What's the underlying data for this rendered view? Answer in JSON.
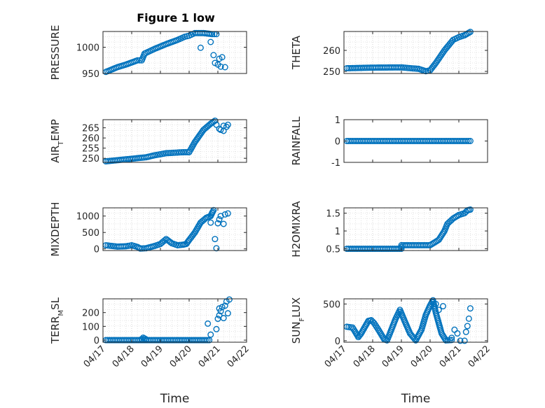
{
  "figure_title": "Figure 1 low",
  "colors": {
    "marker": "#0072bd",
    "axis": "#262626",
    "grid": "#dcdcdc"
  },
  "chart_data": [
    {
      "type": "scatter",
      "ylabel": "PRESSURE",
      "ylim": [
        950,
        1030
      ],
      "yticks": [
        "950",
        "1000"
      ],
      "ytick_values": [
        950,
        1000
      ],
      "xlim": [
        0,
        5
      ],
      "xticks": [],
      "grid": true,
      "segments": [
        [
          0.1,
          953
        ],
        [
          0.5,
          962
        ],
        [
          0.8,
          967
        ],
        [
          1.2,
          975
        ],
        [
          1.35,
          975
        ],
        [
          1.45,
          988
        ],
        [
          1.8,
          997
        ],
        [
          2.2,
          1006
        ],
        [
          2.6,
          1014
        ],
        [
          2.85,
          1020
        ],
        [
          3.0,
          1022
        ],
        [
          3.2,
          1027
        ],
        [
          3.5,
          1027
        ],
        [
          3.8,
          1025
        ],
        [
          3.95,
          1025
        ]
      ],
      "points": [
        [
          3.4,
          999
        ],
        [
          3.75,
          1010
        ],
        [
          3.85,
          985
        ],
        [
          3.9,
          970
        ],
        [
          4.0,
          967
        ],
        [
          4.05,
          978
        ],
        [
          4.1,
          963
        ],
        [
          4.15,
          981
        ],
        [
          4.25,
          962
        ]
      ]
    },
    {
      "type": "scatter",
      "ylabel": "THETA",
      "ylim": [
        249,
        269
      ],
      "yticks": [
        "250",
        "260"
      ],
      "ytick_values": [
        250,
        260
      ],
      "xlim": [
        0,
        5
      ],
      "xticks": [],
      "grid": true,
      "segments": [
        [
          0.1,
          251.5
        ],
        [
          1.0,
          251.8
        ],
        [
          2.0,
          251.9
        ],
        [
          2.6,
          251.2
        ],
        [
          2.85,
          250.1
        ],
        [
          3.0,
          250.5
        ],
        [
          3.2,
          254
        ],
        [
          3.5,
          260
        ],
        [
          3.8,
          265
        ],
        [
          4.0,
          266.3
        ],
        [
          4.2,
          267.2
        ],
        [
          4.4,
          268.8
        ]
      ],
      "points": []
    },
    {
      "type": "scatter",
      "ylabel": "AIR_TEMP",
      "ylim": [
        248,
        269
      ],
      "yticks": [
        "250",
        "255",
        "260",
        "265"
      ],
      "ytick_values": [
        250,
        255,
        260,
        265
      ],
      "xlim": [
        0,
        5
      ],
      "xticks": [],
      "grid": true,
      "segments": [
        [
          0.1,
          248.5
        ],
        [
          0.8,
          249.5
        ],
        [
          1.5,
          250.5
        ],
        [
          1.8,
          251.5
        ],
        [
          2.2,
          252.5
        ],
        [
          2.8,
          253.0
        ],
        [
          3.0,
          253.0
        ],
        [
          3.2,
          258
        ],
        [
          3.5,
          264
        ],
        [
          3.75,
          267
        ],
        [
          3.9,
          268.5
        ]
      ],
      "points": [
        [
          3.95,
          266.5
        ],
        [
          4.05,
          264.5
        ],
        [
          4.1,
          264.0
        ],
        [
          4.2,
          263.5
        ],
        [
          4.2,
          266.0
        ],
        [
          4.3,
          265.5
        ],
        [
          4.35,
          266.5
        ]
      ]
    },
    {
      "type": "scatter",
      "ylabel": "RAINFALL",
      "ylim": [
        -1,
        1
      ],
      "yticks": [
        "-1",
        "0",
        "1"
      ],
      "ytick_values": [
        -1,
        0,
        1
      ],
      "xlim": [
        0,
        5
      ],
      "xticks": [],
      "grid": false,
      "segments": [
        [
          0.1,
          0
        ],
        [
          4.4,
          0
        ]
      ],
      "points": []
    },
    {
      "type": "scatter",
      "ylabel": "MIXDEPTH",
      "ylim": [
        -50,
        1250
      ],
      "yticks": [
        "0",
        "500",
        "1000"
      ],
      "ytick_values": [
        0,
        500,
        1000
      ],
      "xlim": [
        0,
        5
      ],
      "xticks": [],
      "grid": true,
      "segments": [
        [
          0.1,
          110
        ],
        [
          0.3,
          90
        ],
        [
          0.5,
          70
        ],
        [
          0.8,
          80
        ],
        [
          1.0,
          110
        ],
        [
          1.2,
          60
        ],
        [
          1.3,
          10
        ],
        [
          1.5,
          20
        ],
        [
          1.8,
          90
        ],
        [
          2.0,
          150
        ],
        [
          2.2,
          300
        ],
        [
          2.4,
          170
        ],
        [
          2.6,
          110
        ],
        [
          2.8,
          130
        ],
        [
          2.9,
          150
        ],
        [
          3.0,
          270
        ],
        [
          3.2,
          500
        ],
        [
          3.4,
          800
        ],
        [
          3.6,
          950
        ],
        [
          3.75,
          1000
        ],
        [
          3.85,
          1180
        ]
      ],
      "points": [
        [
          3.75,
          800
        ],
        [
          3.8,
          1100
        ],
        [
          3.9,
          300
        ],
        [
          3.95,
          20
        ],
        [
          4.0,
          780
        ],
        [
          4.05,
          900
        ],
        [
          4.1,
          1000
        ],
        [
          4.2,
          760
        ],
        [
          4.25,
          1050
        ],
        [
          4.35,
          1080
        ]
      ]
    },
    {
      "type": "scatter",
      "ylabel": "H2OMIXRA",
      "ylim": [
        0.45,
        1.65
      ],
      "yticks": [
        "0.5",
        "1",
        "1.5"
      ],
      "ytick_values": [
        0.5,
        1.0,
        1.5
      ],
      "xlim": [
        0,
        5
      ],
      "xticks": [],
      "grid": true,
      "segments": [
        [
          0.1,
          0.5
        ],
        [
          2.0,
          0.5
        ],
        [
          2.0,
          0.6
        ],
        [
          3.0,
          0.6
        ],
        [
          3.3,
          0.75
        ],
        [
          3.5,
          1.0
        ],
        [
          3.6,
          1.2
        ],
        [
          3.8,
          1.35
        ],
        [
          4.0,
          1.45
        ],
        [
          4.2,
          1.5
        ],
        [
          4.3,
          1.58
        ],
        [
          4.4,
          1.6
        ]
      ],
      "points": []
    },
    {
      "type": "scatter",
      "ylabel": "TERR_MSL",
      "ylim": [
        -15,
        300
      ],
      "yticks": [
        "0",
        "100",
        "200"
      ],
      "ytick_values": [
        0,
        100,
        200
      ],
      "xlim": [
        0,
        5
      ],
      "xticks": [
        "04/17",
        "04/18",
        "04/19",
        "04/20",
        "04/21",
        "04/22"
      ],
      "xlabel": "Time",
      "grid": true,
      "segments": [
        [
          0.1,
          0
        ],
        [
          3.7,
          0
        ]
      ],
      "points": [
        [
          1.35,
          8
        ],
        [
          1.4,
          18
        ],
        [
          1.45,
          12
        ],
        [
          1.5,
          6
        ],
        [
          3.65,
          120
        ],
        [
          3.75,
          40
        ],
        [
          3.95,
          80
        ],
        [
          4.0,
          155
        ],
        [
          4.05,
          180
        ],
        [
          4.05,
          230
        ],
        [
          4.1,
          210
        ],
        [
          4.15,
          240
        ],
        [
          4.2,
          160
        ],
        [
          4.25,
          250
        ],
        [
          4.3,
          280
        ],
        [
          4.4,
          295
        ],
        [
          4.35,
          195
        ]
      ]
    },
    {
      "type": "scatter",
      "ylabel": "SUN_FLUX",
      "ylim": [
        -20,
        570
      ],
      "yticks": [
        "0",
        "500"
      ],
      "ytick_values": [
        0,
        500
      ],
      "xlim": [
        0,
        5
      ],
      "xticks": [
        "04/17",
        "04/18",
        "04/19",
        "04/20",
        "04/21",
        "04/22"
      ],
      "xlabel": "Time",
      "grid": true,
      "segments": [
        [
          0.1,
          190
        ],
        [
          0.3,
          180
        ],
        [
          0.5,
          50
        ],
        [
          0.6,
          100
        ],
        [
          0.85,
          270
        ],
        [
          0.95,
          280
        ],
        [
          1.05,
          240
        ],
        [
          1.2,
          150
        ],
        [
          1.4,
          20
        ],
        [
          1.5,
          5
        ],
        [
          1.6,
          100
        ],
        [
          1.8,
          300
        ],
        [
          1.95,
          420
        ],
        [
          2.1,
          280
        ],
        [
          2.3,
          100
        ],
        [
          2.5,
          5
        ],
        [
          2.7,
          150
        ],
        [
          2.85,
          350
        ],
        [
          3.0,
          480
        ],
        [
          3.1,
          550
        ],
        [
          3.2,
          380
        ],
        [
          3.4,
          100
        ],
        [
          3.55,
          5
        ],
        [
          3.75,
          10
        ]
      ],
      "points": [
        [
          3.2,
          500
        ],
        [
          3.3,
          420
        ],
        [
          3.45,
          470
        ],
        [
          3.75,
          40
        ],
        [
          3.85,
          150
        ],
        [
          3.95,
          100
        ],
        [
          4.05,
          0
        ],
        [
          4.2,
          0
        ],
        [
          4.25,
          120
        ],
        [
          4.3,
          200
        ],
        [
          4.35,
          300
        ],
        [
          4.4,
          440
        ]
      ]
    }
  ]
}
